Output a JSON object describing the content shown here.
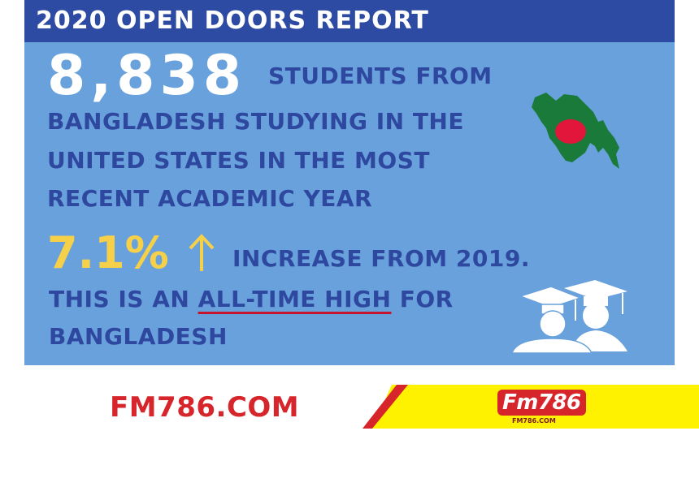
{
  "header": {
    "title": "2020 OPEN DOORS REPORT"
  },
  "stats": {
    "students_count": "8,838",
    "line1": "STUDENTS FROM",
    "line2": "BANGLADESH STUDYING IN THE",
    "line3": "UNITED STATES IN THE MOST",
    "line4": "RECENT ACADEMIC YEAR",
    "increase_pct": "7.1%",
    "increase_text": "INCREASE FROM 2019.",
    "line5_a": "THIS IS AN ",
    "line5_highlight": "ALL-TIME HIGH",
    "line5_b": " FOR",
    "line6": "BANGLADESH"
  },
  "footer": {
    "site": "FM786.COM",
    "logo": "Fm786",
    "logo_sub": "FM786.COM"
  },
  "icons": {
    "map": "bangladesh-map-icon",
    "arrow": "arrow-up-icon",
    "graduates": "graduates-icon"
  },
  "colors": {
    "card_bg": "#69a1dc",
    "header_bg": "#2e4ba3",
    "text_dark": "#2e479f",
    "highlight_yellow": "#f7d04a",
    "brand_red": "#d7262b",
    "banner_yellow": "#fff200"
  }
}
